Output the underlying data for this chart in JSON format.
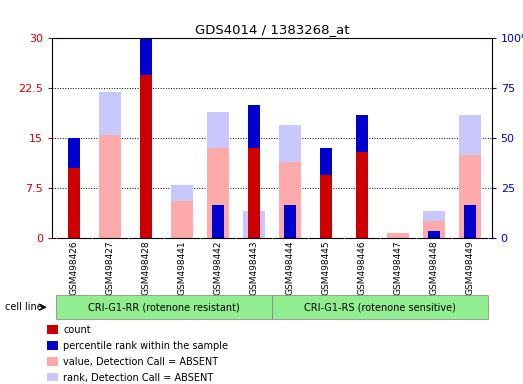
{
  "title": "GDS4014 / 1383268_at",
  "samples": [
    "GSM498426",
    "GSM498427",
    "GSM498428",
    "GSM498441",
    "GSM498442",
    "GSM498443",
    "GSM498444",
    "GSM498445",
    "GSM498446",
    "GSM498447",
    "GSM498448",
    "GSM498449"
  ],
  "count_values": [
    10.5,
    0,
    24.5,
    0,
    0,
    13.5,
    0,
    9.5,
    13.0,
    0,
    0,
    0
  ],
  "rank_values": [
    4.5,
    0,
    7.5,
    0,
    5.0,
    6.5,
    5.0,
    4.0,
    5.5,
    0,
    1.0,
    5.0
  ],
  "absent_value_values": [
    0,
    15.5,
    0,
    5.5,
    13.5,
    0,
    11.5,
    0,
    0,
    0.8,
    2.5,
    12.5
  ],
  "absent_rank_values": [
    0,
    6.5,
    0,
    2.5,
    5.5,
    4.0,
    5.5,
    0,
    0,
    0,
    1.5,
    6.0
  ],
  "ylim_left": [
    0,
    30
  ],
  "ylim_right": [
    0,
    100
  ],
  "yticks_left": [
    0,
    7.5,
    15,
    22.5,
    30
  ],
  "yticks_right": [
    0,
    25,
    50,
    75,
    100
  ],
  "group1_label": "CRI-G1-RR (rotenone resistant)",
  "group2_label": "CRI-G1-RS (rotenone sensitive)",
  "group1_count": 6,
  "group2_count": 6,
  "legend_items": [
    {
      "label": "count",
      "color": "#cc0000"
    },
    {
      "label": "percentile rank within the sample",
      "color": "#0000cc"
    },
    {
      "label": "value, Detection Call = ABSENT",
      "color": "#ffaaaa"
    },
    {
      "label": "rank, Detection Call = ABSENT",
      "color": "#c8c8ff"
    }
  ],
  "red": "#cc0000",
  "blue": "#0000cc",
  "pink": "#ffaaaa",
  "light_blue": "#c8c8ff",
  "gray_bg": "#d3d3d3",
  "green_bg": "#90ee90"
}
